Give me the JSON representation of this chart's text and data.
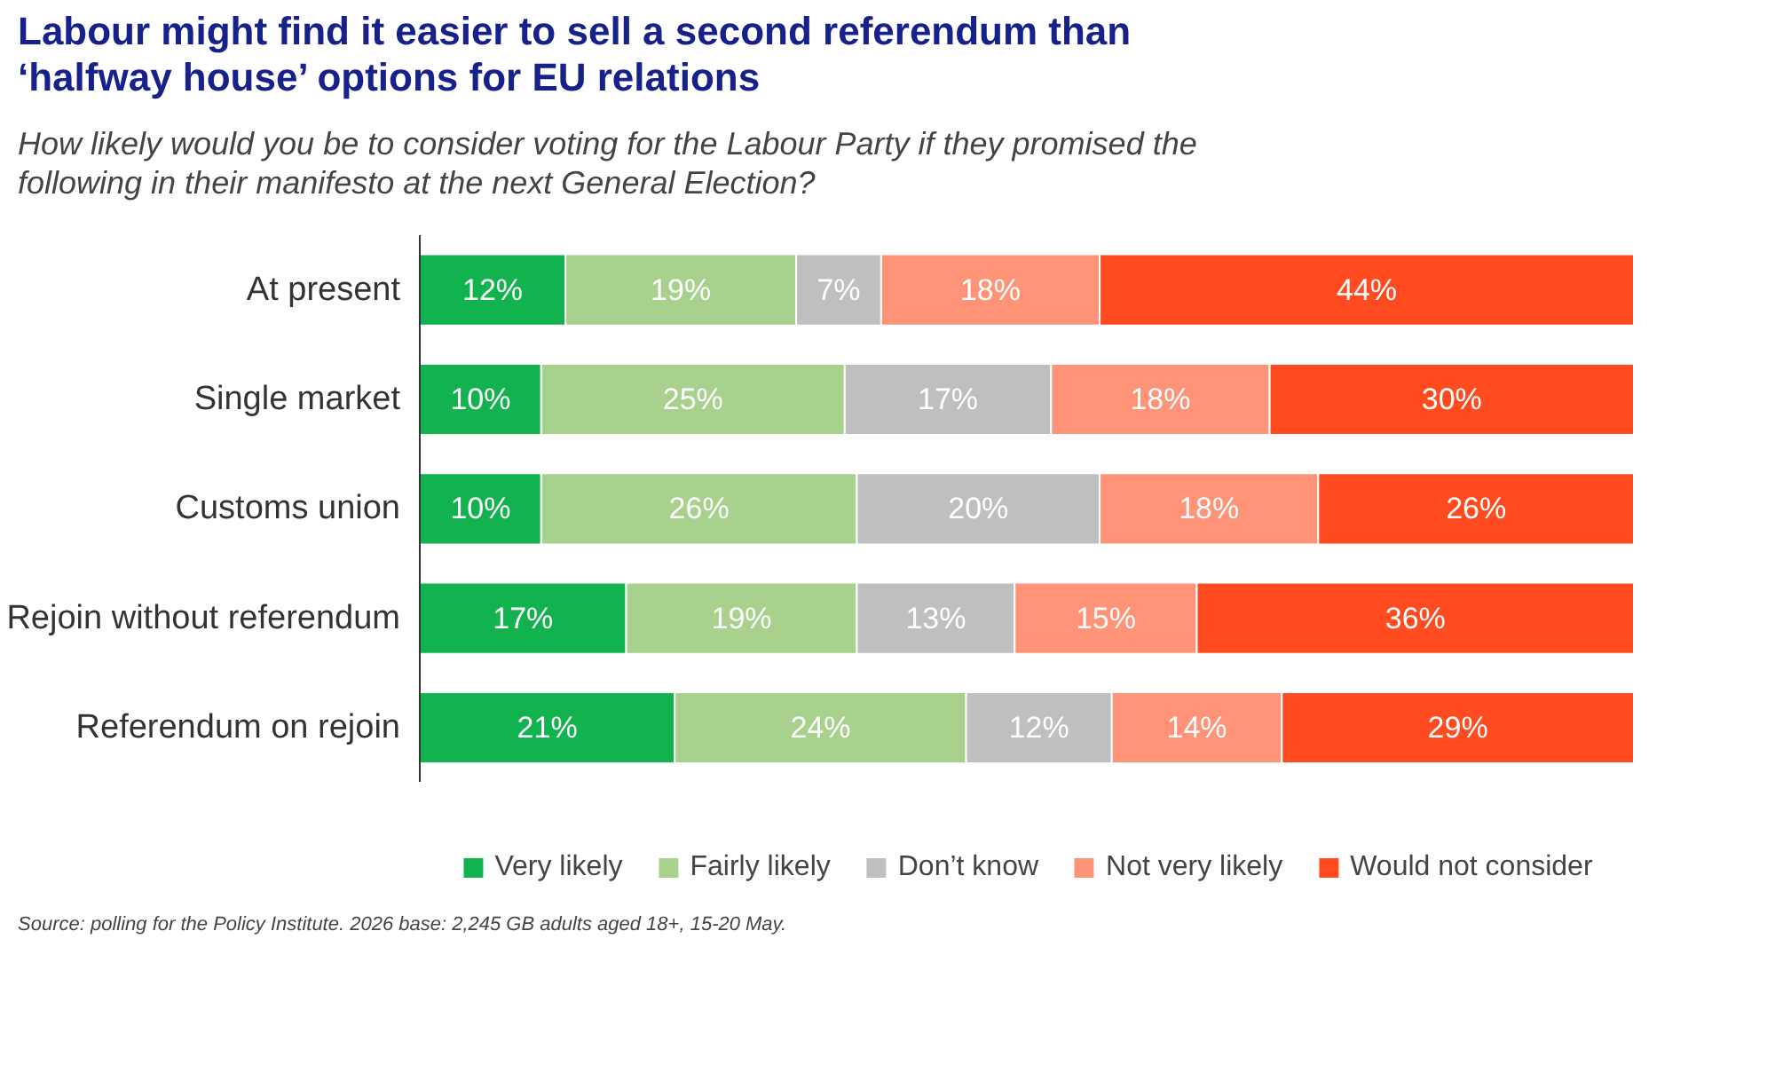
{
  "chart_data": {
    "type": "bar",
    "orientation": "horizontal",
    "stacked": true,
    "title": "Labour might find it easier to sell a second referendum than ‘halfway house’ options for EU relations",
    "subtitle": "How likely would you be to consider voting for the Labour Party if they promised the following in their manifesto at the next General Election?",
    "categories": [
      "At present",
      "Single market",
      "Customs union",
      "Rejoin without referendum",
      "Referendum on rejoin"
    ],
    "series": [
      {
        "name": "Very likely",
        "color": "#12b24f",
        "values": [
          12,
          10,
          10,
          17,
          21
        ],
        "value_labels": [
          "12%",
          "10%",
          "10%",
          "17%",
          "21%"
        ]
      },
      {
        "name": "Fairly likely",
        "color": "#a9d18e",
        "values": [
          19,
          25,
          26,
          19,
          24
        ],
        "value_labels": [
          "19%",
          "25%",
          "26%",
          "19%",
          "24%"
        ]
      },
      {
        "name": "Don’t know",
        "color": "#bfbfbf",
        "values": [
          7,
          17,
          20,
          13,
          12
        ],
        "value_labels": [
          "7%",
          "17%",
          "20%",
          "13%",
          "12%"
        ]
      },
      {
        "name": "Not very likely",
        "color": "#ff9378",
        "values": [
          18,
          18,
          18,
          15,
          14
        ],
        "value_labels": [
          "18%",
          "18%",
          "18%",
          "15%",
          "14%"
        ]
      },
      {
        "name": "Would not consider",
        "color": "#ff4b1f",
        "values": [
          44,
          30,
          26,
          36,
          29
        ],
        "value_labels": [
          "44%",
          "30%",
          "26%",
          "36%",
          "29%"
        ]
      }
    ],
    "xlim": [
      0,
      100
    ],
    "tick_labels": "y",
    "grid": false,
    "legend": "bottom",
    "annotations": [
      "Source: polling for the Policy Institute. 2026 base: 2,245 GB adults aged 18+, 15-20 May."
    ]
  }
}
